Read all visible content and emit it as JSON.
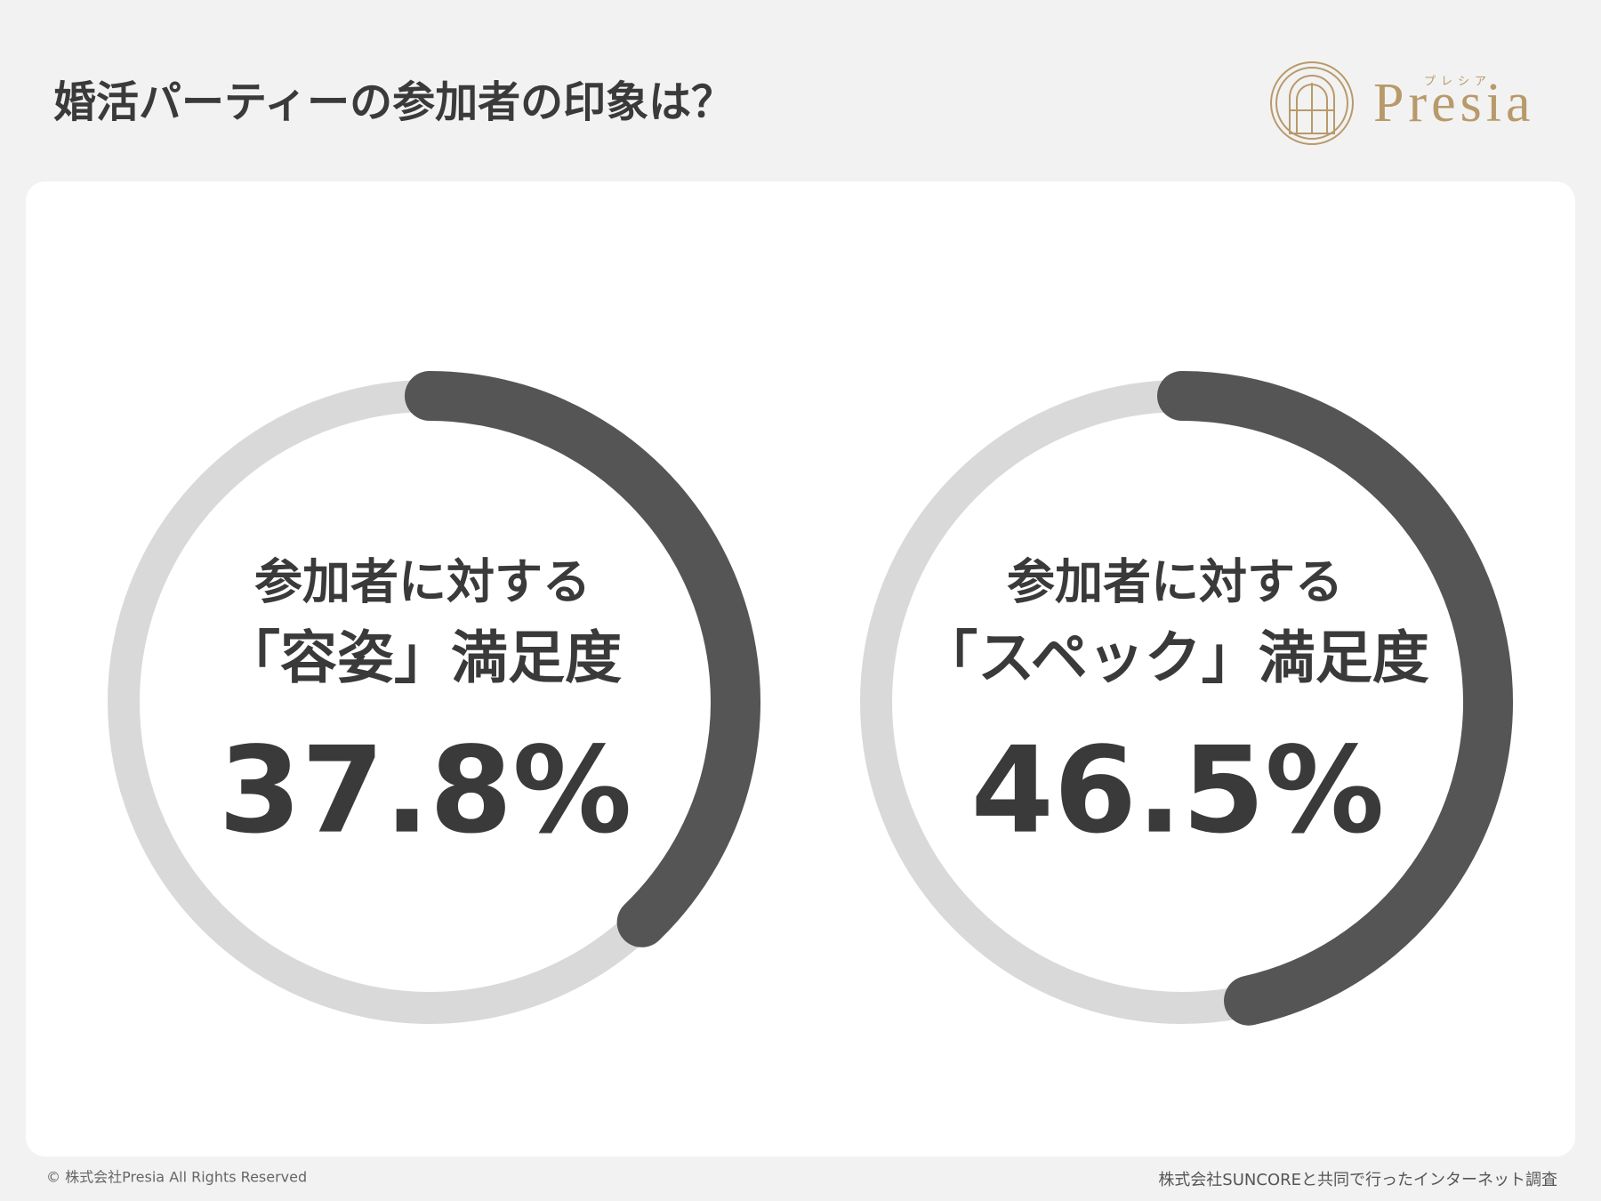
{
  "header": {
    "title": "婚活パーティーの参加者の印象は？",
    "logo": "Presia",
    "logo_kana": "プレシア"
  },
  "chart_data": [
    {
      "type": "gauge",
      "title_lines": [
        "参加者に対する",
        "「容姿」満足度"
      ],
      "values": [
        37.8
      ],
      "value_labels": [
        "37.8%"
      ],
      "max": 100,
      "color": "#555555",
      "track_color": "#d9d9d9"
    },
    {
      "type": "gauge",
      "title_lines": [
        "参加者に対する",
        "「スペック」満足度"
      ],
      "values": [
        46.5
      ],
      "value_labels": [
        "46.5%"
      ],
      "max": 100,
      "color": "#555555",
      "track_color": "#d9d9d9"
    }
  ],
  "footer": {
    "left": "© 株式会社Presia All Rights Reserved",
    "right": "株式会社SUNCOREと共同で行ったインターネット調査"
  }
}
